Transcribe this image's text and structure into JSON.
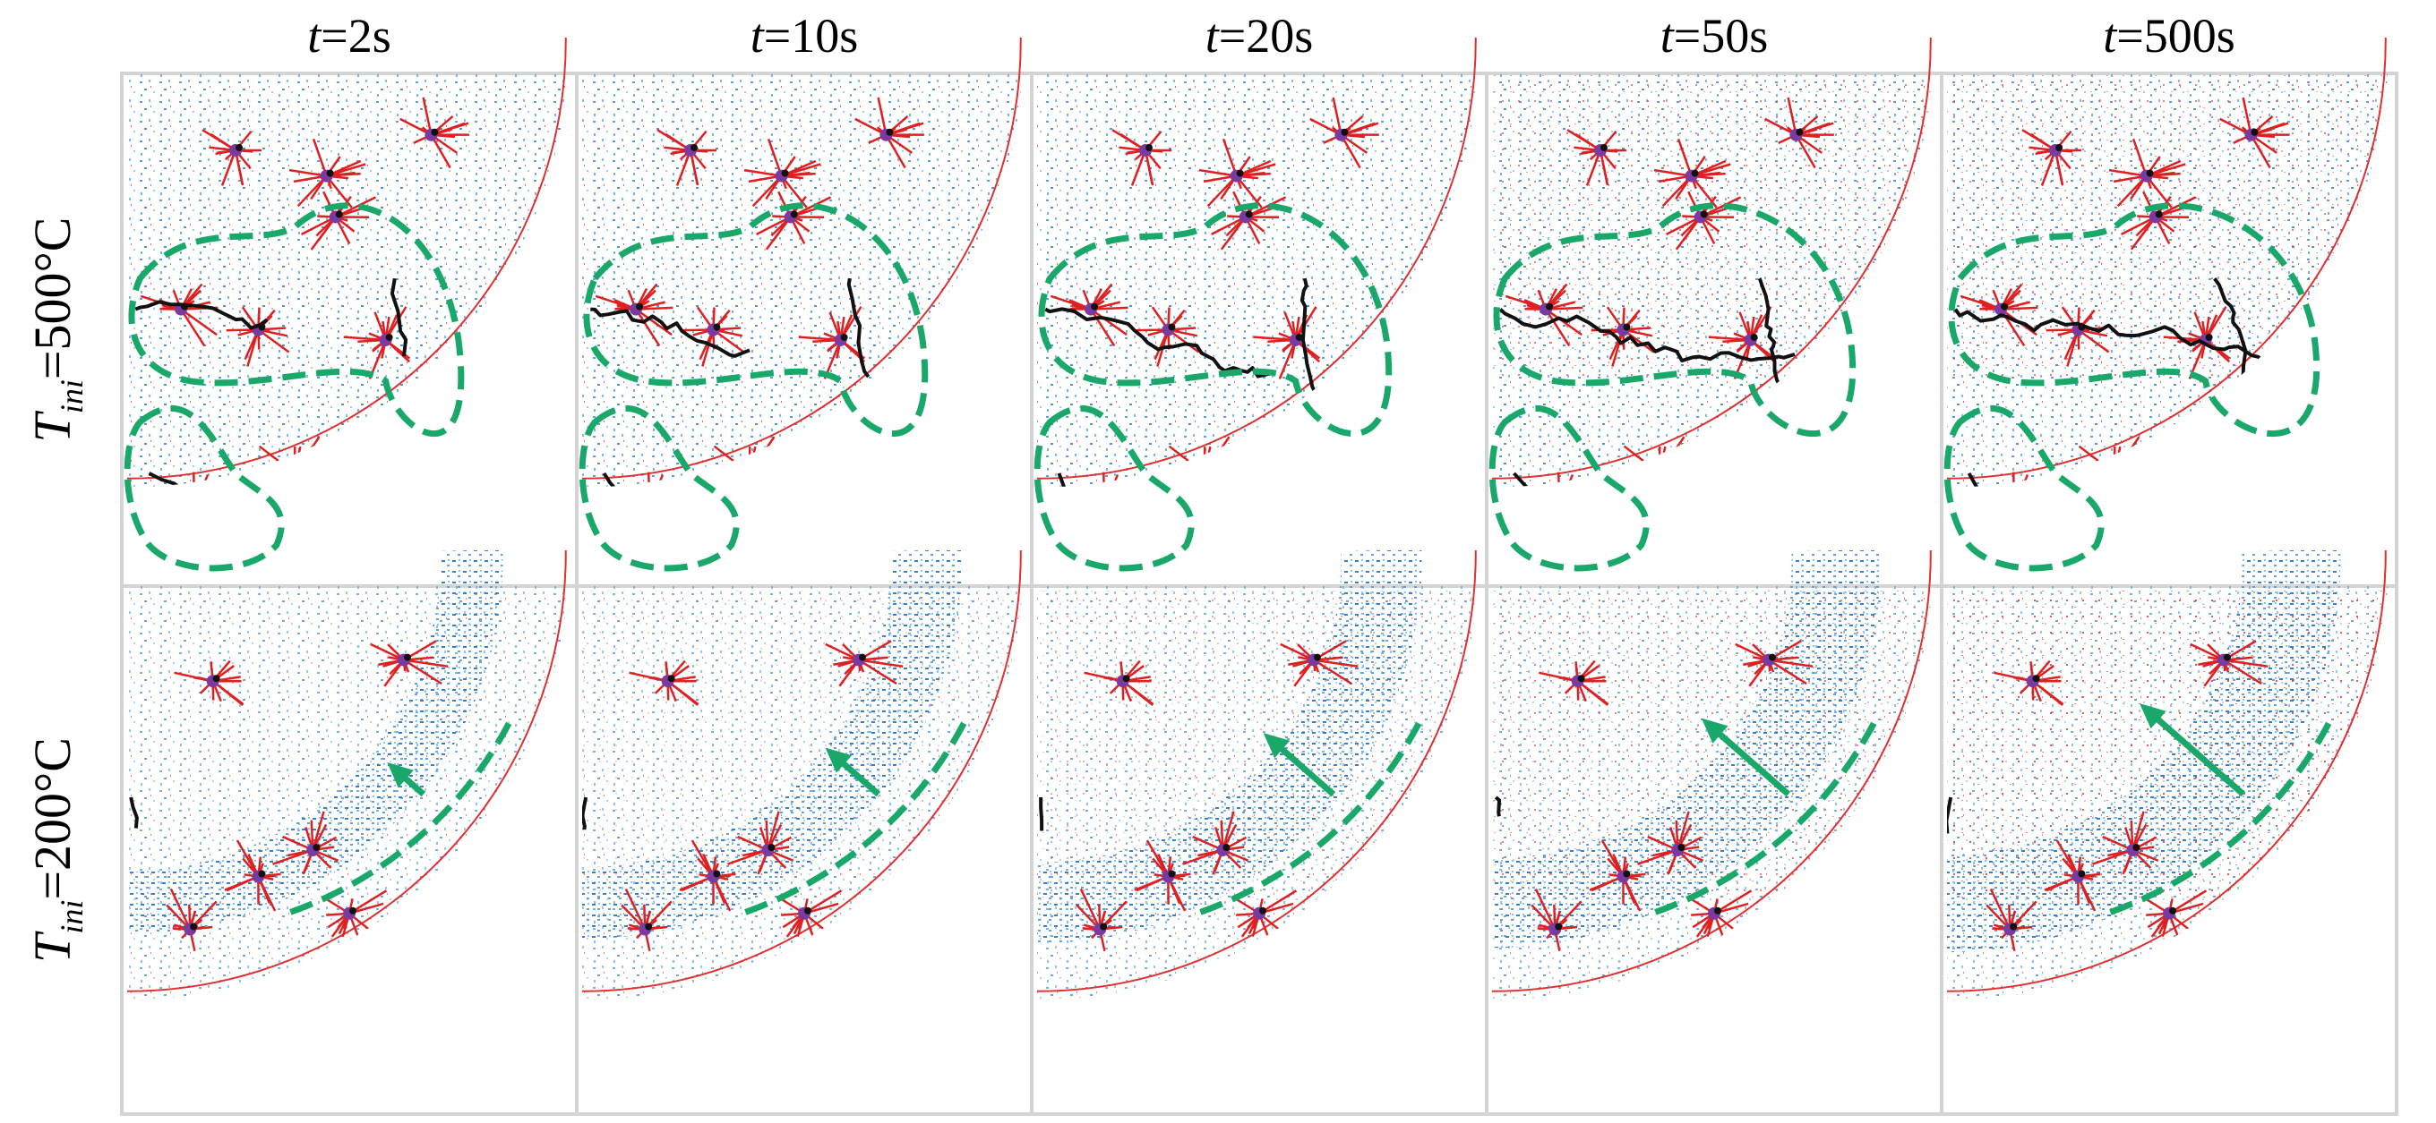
{
  "columns": [
    {
      "variable": "t",
      "value": "=2s"
    },
    {
      "variable": "t",
      "value": "=10s"
    },
    {
      "variable": "t",
      "value": "=20s"
    },
    {
      "variable": "t",
      "value": "=50s"
    },
    {
      "variable": "t",
      "value": "=500s"
    }
  ],
  "rows": [
    {
      "symbol": "T",
      "subscript": "ini",
      "value": "=500°C"
    },
    {
      "symbol": "T",
      "subscript": "ini",
      "value": "=200°C"
    }
  ]
}
